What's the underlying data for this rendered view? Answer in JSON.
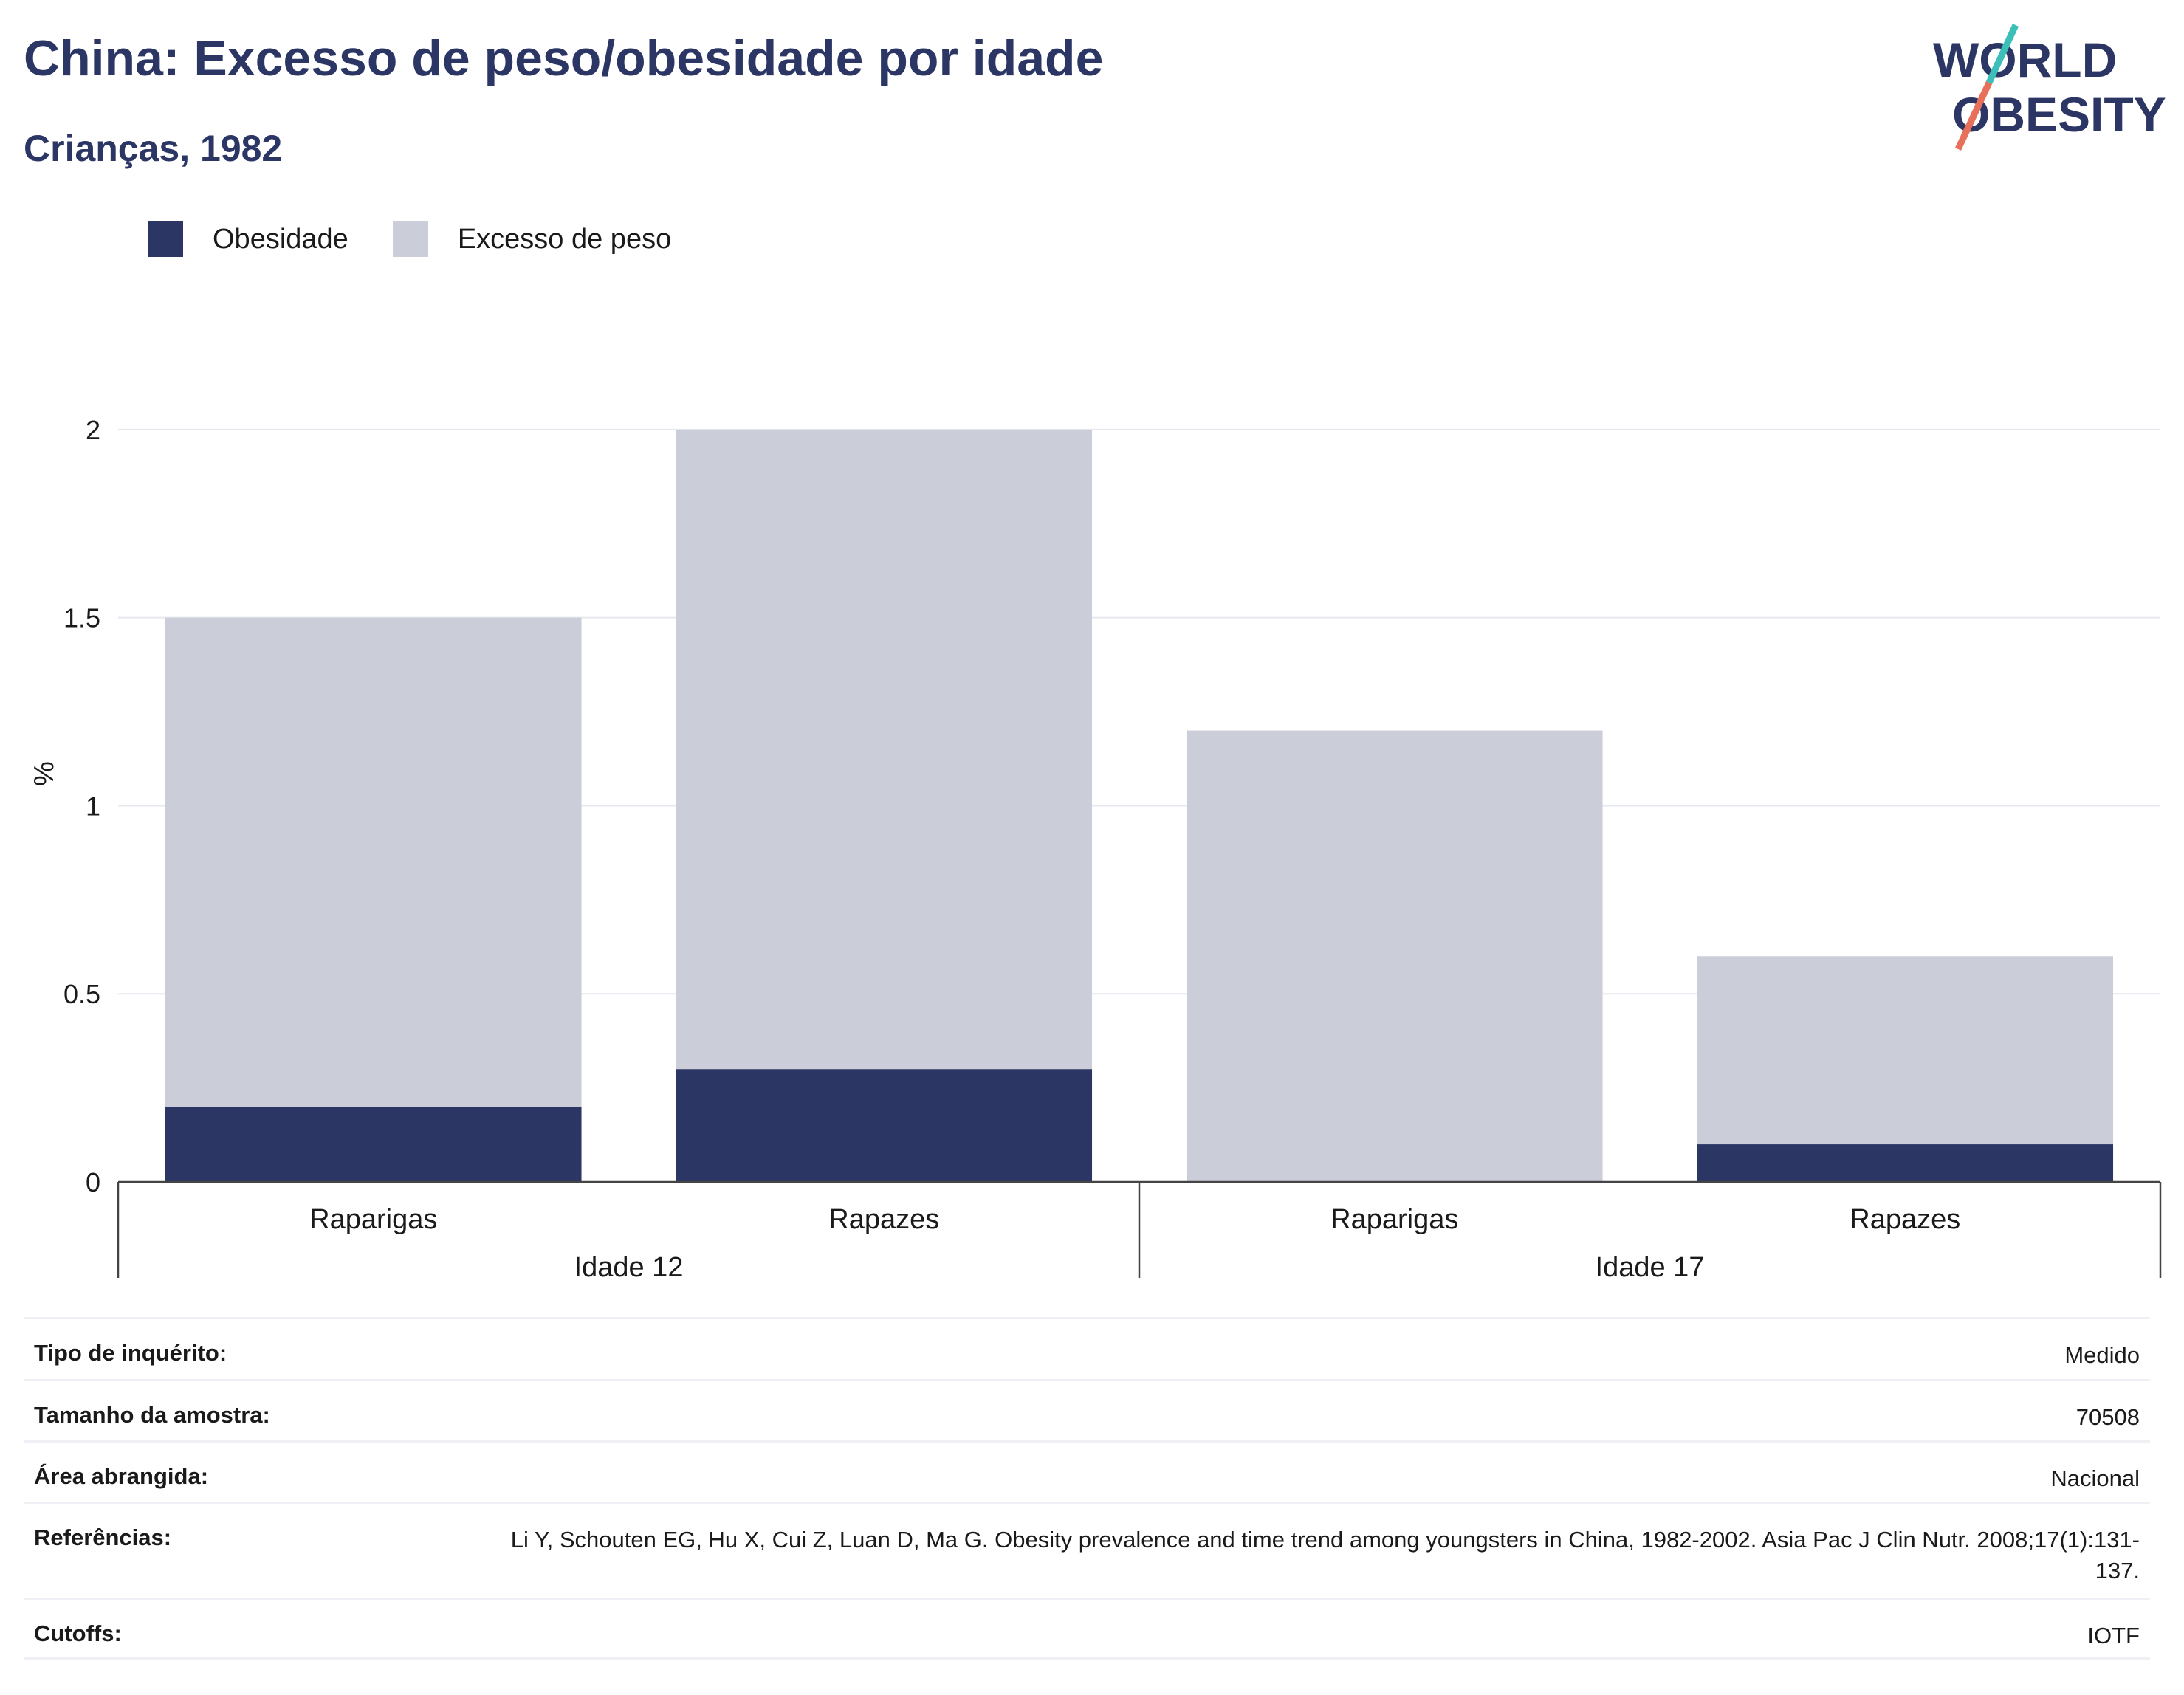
{
  "header": {
    "title": "China: Excesso de peso/obesidade por idade",
    "subtitle": "Crianças, 1982",
    "logo_line1": "WORLD",
    "logo_line2": "OBESITY"
  },
  "legend": {
    "obesity_label": "Obesidade",
    "overweight_label": "Excesso de peso"
  },
  "colors": {
    "obesity": "#2b3665",
    "overweight": "#cbcdd8",
    "accent_teal": "#3bbfb8",
    "accent_coral": "#e8705a"
  },
  "chart_data": {
    "type": "bar",
    "stacked": true,
    "ylabel": "%",
    "ylim": [
      0,
      2.2
    ],
    "yticks": [
      0,
      0.5,
      1,
      1.5,
      2
    ],
    "ytick_labels": [
      "0",
      "0.5",
      "1",
      "1.5",
      "2"
    ],
    "groups": [
      {
        "label": "Idade 12",
        "categories": [
          "Raparigas",
          "Rapazes"
        ]
      },
      {
        "label": "Idade 17",
        "categories": [
          "Raparigas",
          "Rapazes"
        ]
      }
    ],
    "categories": [
      "Raparigas",
      "Rapazes",
      "Raparigas",
      "Rapazes"
    ],
    "series": [
      {
        "name": "Obesidade",
        "values": [
          0.2,
          0.3,
          0,
          0.1
        ]
      },
      {
        "name": "Excesso de peso",
        "values": [
          1.3,
          1.7,
          1.2,
          0.5
        ]
      }
    ],
    "grid": true,
    "legend_position": "top-left"
  },
  "info": [
    {
      "label": "Tipo de inquérito:",
      "value": "Medido"
    },
    {
      "label": "Tamanho da amostra:",
      "value": "70508"
    },
    {
      "label": "Área abrangida:",
      "value": "Nacional"
    },
    {
      "label": "Referências:",
      "value": "Li Y, Schouten EG, Hu X, Cui Z, Luan D, Ma G. Obesity prevalence and time trend among youngsters in China, 1982-2002. Asia Pac J Clin Nutr. 2008;17(1):131-137."
    },
    {
      "label": "Cutoffs:",
      "value": "IOTF"
    }
  ]
}
